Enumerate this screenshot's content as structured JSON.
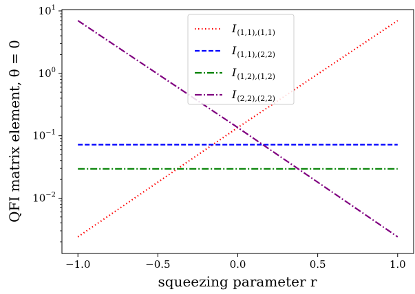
{
  "chart_data": {
    "type": "line",
    "xlabel": "squeezing parameter r",
    "ylabel": "QFI matrix element, θ = 0",
    "xlim": [
      -1.1,
      1.1
    ],
    "ylim": [
      0.0013,
      10.5
    ],
    "yscale": "log",
    "grid": false,
    "legend_position": "top-center",
    "x_ticks": [
      -1.0,
      -0.5,
      0.0,
      0.5,
      1.0
    ],
    "x_tick_labels": [
      "−1.0",
      "−0.5",
      "0.0",
      "0.5",
      "1.0"
    ],
    "y_ticks": [
      0.01,
      0.1,
      1,
      10
    ],
    "y_tick_labels": [
      {
        "base": "10",
        "exp": "−2"
      },
      {
        "base": "10",
        "exp": "−1"
      },
      {
        "base": "10",
        "exp": "0"
      },
      {
        "base": "10",
        "exp": "1"
      }
    ],
    "series": [
      {
        "name": "I",
        "subscript": "(1,1),(1,1)",
        "color": "#ff0000",
        "linestyle": "dotted",
        "x": [
          -1.0,
          0.0,
          1.0
        ],
        "y": [
          0.0024,
          0.1355,
          7.0
        ]
      },
      {
        "name": "I",
        "subscript": "(1,1),(2,2)",
        "color": "#0000ff",
        "linestyle": "dashed",
        "x": [
          -1.0,
          1.0
        ],
        "y": [
          0.072,
          0.072
        ]
      },
      {
        "name": "I",
        "subscript": "(1,2),(1,2)",
        "color": "#008000",
        "linestyle": "dashdot",
        "x": [
          -1.0,
          1.0
        ],
        "y": [
          0.0295,
          0.0295
        ]
      },
      {
        "name": "I",
        "subscript": "(2,2),(2,2)",
        "color": "#800080",
        "linestyle": "dashdot",
        "x": [
          -1.0,
          0.0,
          1.0
        ],
        "y": [
          7.0,
          0.1355,
          0.0024
        ]
      }
    ]
  }
}
